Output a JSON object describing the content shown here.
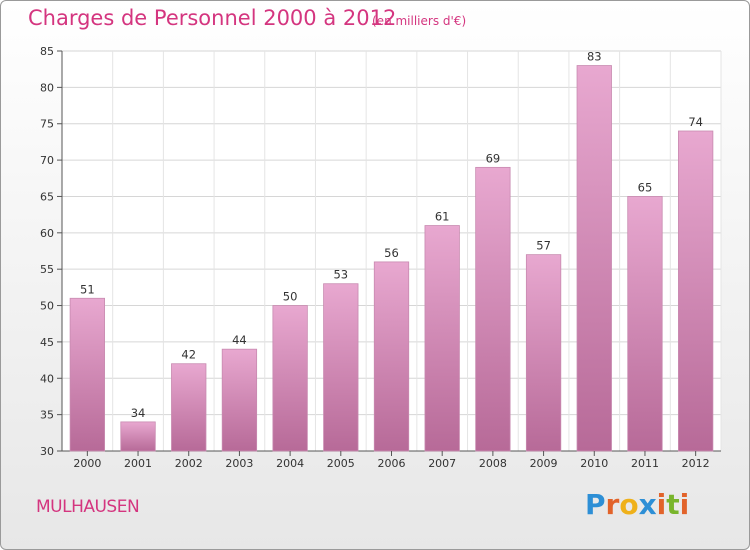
{
  "chart_data": {
    "type": "bar",
    "title": "Charges de Personnel 2000 à 2012",
    "subtitle": "(en milliers d'€)",
    "categories": [
      "2000",
      "2001",
      "2002",
      "2003",
      "2004",
      "2005",
      "2006",
      "2007",
      "2008",
      "2009",
      "2010",
      "2011",
      "2012"
    ],
    "values": [
      51,
      34,
      42,
      44,
      50,
      53,
      56,
      61,
      69,
      57,
      83,
      65,
      74
    ],
    "ylim": [
      30,
      85
    ],
    "yticks": [
      30,
      35,
      40,
      45,
      50,
      55,
      60,
      65,
      70,
      75,
      80,
      85
    ],
    "grid": true,
    "bar_color": "#cf7fb0"
  },
  "footer": {
    "city": "MULHAUSEN",
    "brand_letters": [
      {
        "char": "P",
        "color": "#2d8fd6"
      },
      {
        "char": "r",
        "color": "#e2632a"
      },
      {
        "char": "o",
        "color": "#efb11a"
      },
      {
        "char": "x",
        "color": "#2d8fd6"
      },
      {
        "char": "i",
        "color": "#e2632a"
      },
      {
        "char": "t",
        "color": "#79b52c"
      },
      {
        "char": "i",
        "color": "#e2632a"
      }
    ]
  }
}
